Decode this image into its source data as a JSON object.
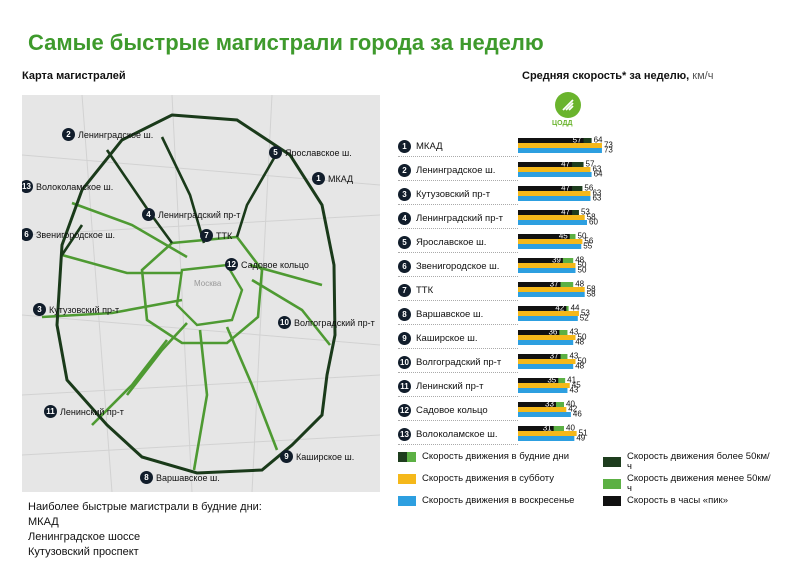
{
  "title": "Самые быстрые магистрали города за неделю",
  "map_caption": "Карта магистралей",
  "chart_caption": "Средняя скорость* за неделю,",
  "chart_unit": "км/ч",
  "logo_text": "ЦОДД",
  "map": {
    "center": "Москва",
    "labels": [
      {
        "num": "1",
        "name": "МКАД"
      },
      {
        "num": "2",
        "name": "Ленинградское ш."
      },
      {
        "num": "3",
        "name": "Кутузовский пр-т"
      },
      {
        "num": "4",
        "name": "Ленинградский пр-т"
      },
      {
        "num": "5",
        "name": "Ярославское ш."
      },
      {
        "num": "6",
        "name": "Звенигородское ш."
      },
      {
        "num": "7",
        "name": "ТТК"
      },
      {
        "num": "8",
        "name": "Варшавское ш."
      },
      {
        "num": "9",
        "name": "Каширское ш."
      },
      {
        "num": "10",
        "name": "Волгоградский пр-т"
      },
      {
        "num": "11",
        "name": "Ленинский пр-т"
      },
      {
        "num": "12",
        "name": "Садовое кольцо"
      },
      {
        "num": "13",
        "name": "Волоколамское ш."
      }
    ]
  },
  "chart_data": {
    "type": "bar",
    "orientation": "horizontal",
    "categories": [
      "МКАД",
      "Ленинградское ш.",
      "Кутузовский пр-т",
      "Ленинградский пр-т",
      "Ярославское ш.",
      "Звенигородское ш.",
      "ТТК",
      "Варшавское ш.",
      "Каширское ш.",
      "Волгоградский пр-т",
      "Ленинский пр-т",
      "Садовое кольцо",
      "Волоколамское ш."
    ],
    "category_numbers": [
      "1",
      "2",
      "3",
      "4",
      "5",
      "6",
      "7",
      "8",
      "9",
      "10",
      "11",
      "12",
      "13"
    ],
    "series": [
      {
        "name": "Скорость движения в будние дни",
        "values": [
          64,
          57,
          56,
          53,
          50,
          48,
          48,
          44,
          43,
          43,
          41,
          40,
          40
        ]
      },
      {
        "name": "Скорость движения в субботу",
        "values": [
          73,
          63,
          63,
          58,
          56,
          50,
          58,
          53,
          50,
          50,
          45,
          42,
          51
        ]
      },
      {
        "name": "Скорость движения в воскресенье",
        "values": [
          73,
          64,
          63,
          60,
          55,
          50,
          58,
          52,
          48,
          48,
          43,
          46,
          49
        ]
      },
      {
        "name": "Скорость в часы «пик»",
        "values": [
          57,
          47,
          47,
          47,
          45,
          39,
          37,
          42,
          36,
          37,
          35,
          33,
          31
        ]
      }
    ],
    "weekday_threshold": 50,
    "colors": {
      "weekday_fast": "#1e3d1e",
      "weekday_slow": "#5cb044",
      "saturday": "#f5b81a",
      "sunday": "#2d9fe0",
      "peak": "#111111"
    }
  },
  "legend": {
    "weekday": "Скорость движения в будние дни",
    "saturday": "Скорость движения в субботу",
    "sunday": "Скорость движения в воскресенье",
    "above": "Скорость движения более 50км/ч",
    "below": "Скорость движения менее 50км/ч",
    "peak": "Скорость в часы «пик»"
  },
  "notes": {
    "heading": "Наиболее быстрые магистрали в будние дни:",
    "items": [
      "МКАД",
      "Ленинградское шоссе",
      "Кутузовский проспект"
    ]
  }
}
